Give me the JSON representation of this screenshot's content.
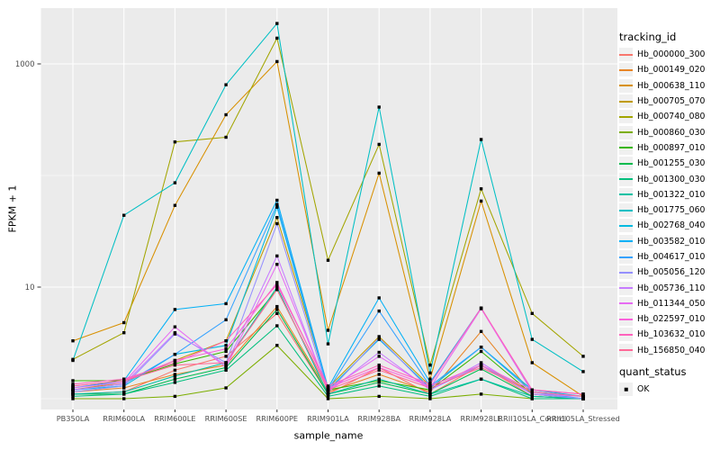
{
  "figure": {
    "background": "#FFFFFF",
    "panel_background": "#EBEBEB",
    "grid_color": "#FFFFFF",
    "tick_color": "#333333",
    "tick_label_color": "#4D4D4D",
    "point_color": "#000000"
  },
  "legend": {
    "tracking_title": "tracking_id",
    "quant_title": "quant_status",
    "quant_items": [
      {
        "label": "OK",
        "marker": "black-square"
      }
    ]
  },
  "chart_data": {
    "type": "line",
    "title": "",
    "xlabel": "sample_name",
    "ylabel": "FPKM + 1",
    "y_scale": "log10",
    "y_tick_labels": [
      "10",
      "1000"
    ],
    "y_tick_values": [
      10,
      1000
    ],
    "y_minor_gridlines": [
      1,
      100
    ],
    "ylim": [
      0.85,
      3200
    ],
    "grid": true,
    "legend_position": "right",
    "point_marker": {
      "shape": "square",
      "color": "#000000",
      "label": "OK"
    },
    "categories": [
      "PB350LA",
      "RRIM600LA",
      "RRIM600LE",
      "RRIM600SE",
      "RRIM600PE",
      "RRIM901LA",
      "RRIM928BA",
      "RRIM928LA",
      "RRIM928LE",
      "RRII105LA_Control",
      "RRII105LA_Stressed"
    ],
    "series": [
      {
        "name": "Hb_000000_300",
        "color": "#F8766D",
        "values": [
          1.1,
          1.15,
          1.8,
          2.4,
          5.8,
          1.1,
          1.9,
          1.1,
          2.0,
          1.05,
          1.0
        ]
      },
      {
        "name": "Hb_000149_020",
        "color": "#E88526",
        "values": [
          1.15,
          1.25,
          1.65,
          2.0,
          6.7,
          1.15,
          1.65,
          1.15,
          4.0,
          1.1,
          1.0
        ]
      },
      {
        "name": "Hb_000638_110",
        "color": "#D89000",
        "values": [
          3.3,
          4.8,
          54.0,
          350.0,
          1050.0,
          4.1,
          105.0,
          1.5,
          59.0,
          2.1,
          1.05
        ]
      },
      {
        "name": "Hb_000705_070",
        "color": "#C09B00",
        "values": [
          1.2,
          1.4,
          2.2,
          3.3,
          42.0,
          1.25,
          3.6,
          1.3,
          2.0,
          1.15,
          1.05
        ]
      },
      {
        "name": "Hb_000740_080",
        "color": "#A3A500",
        "values": [
          2.25,
          3.9,
          200.0,
          220.0,
          1700.0,
          17.4,
          190.0,
          2.0,
          76.0,
          5.8,
          2.4
        ]
      },
      {
        "name": "Hb_000860_030",
        "color": "#7CAE00",
        "values": [
          1.0,
          1.0,
          1.05,
          1.25,
          3.0,
          1.0,
          1.05,
          1.0,
          1.1,
          1.0,
          1.0
        ]
      },
      {
        "name": "Hb_000897_010",
        "color": "#39B600",
        "values": [
          1.45,
          1.45,
          2.05,
          2.65,
          9.5,
          1.2,
          1.45,
          1.2,
          2.65,
          1.1,
          1.0
        ]
      },
      {
        "name": "Hb_001255_030",
        "color": "#00BB4E",
        "values": [
          1.1,
          1.1,
          1.5,
          1.9,
          6.3,
          1.1,
          1.4,
          1.1,
          1.85,
          1.05,
          1.0
        ]
      },
      {
        "name": "Hb_001300_030",
        "color": "#00BF7D",
        "values": [
          1.05,
          1.1,
          1.4,
          1.8,
          4.5,
          1.05,
          1.3,
          1.05,
          1.5,
          1.0,
          1.0
        ]
      },
      {
        "name": "Hb_001322_010",
        "color": "#00C1A3",
        "values": [
          1.1,
          1.15,
          1.6,
          2.1,
          10.0,
          1.1,
          1.5,
          1.1,
          1.5,
          1.05,
          1.0
        ]
      },
      {
        "name": "Hb_001775_060",
        "color": "#00BFC4",
        "values": [
          2.2,
          44.0,
          86.0,
          650.0,
          2300.0,
          3.1,
          410.0,
          1.7,
          210.0,
          3.4,
          1.75
        ]
      },
      {
        "name": "Hb_002768_040",
        "color": "#00BAE0",
        "values": [
          1.2,
          1.3,
          2.5,
          3.0,
          52.0,
          1.2,
          3.4,
          1.25,
          2.9,
          1.2,
          1.05
        ]
      },
      {
        "name": "Hb_003582_010",
        "color": "#00B0F6",
        "values": [
          1.25,
          1.45,
          6.3,
          7.1,
          60.0,
          1.25,
          8.0,
          1.4,
          6.5,
          1.15,
          1.05
        ]
      },
      {
        "name": "Hb_004617_010",
        "color": "#35A2FF",
        "values": [
          1.2,
          1.35,
          2.5,
          5.1,
          55.0,
          1.2,
          6.1,
          1.3,
          2.9,
          1.15,
          1.0
        ]
      },
      {
        "name": "Hb_005056_120",
        "color": "#9590FF",
        "values": [
          1.15,
          1.3,
          3.8,
          2.1,
          37.0,
          1.15,
          3.5,
          1.2,
          2.0,
          1.1,
          1.0
        ]
      },
      {
        "name": "Hb_005736_110",
        "color": "#C77CFF",
        "values": [
          1.2,
          1.35,
          3.9,
          2.0,
          19.0,
          1.15,
          2.6,
          1.2,
          2.1,
          1.1,
          1.05
        ]
      },
      {
        "name": "Hb_011344_050",
        "color": "#E76BF3",
        "values": [
          1.25,
          1.4,
          4.4,
          1.9,
          16.0,
          1.2,
          2.4,
          1.25,
          6.4,
          1.15,
          1.05
        ]
      },
      {
        "name": "Hb_022597_010",
        "color": "#FA62DB",
        "values": [
          1.3,
          1.45,
          2.2,
          2.8,
          11.0,
          1.25,
          1.9,
          1.3,
          2.0,
          1.2,
          1.1
        ]
      },
      {
        "name": "Hb_103632_010",
        "color": "#FF62BC",
        "values": [
          1.35,
          1.5,
          2.1,
          3.3,
          10.5,
          1.3,
          2.0,
          1.35,
          6.5,
          1.2,
          1.1
        ]
      },
      {
        "name": "Hb_156850_040",
        "color": "#FF6A98",
        "values": [
          1.3,
          1.45,
          2.0,
          2.1,
          9.5,
          1.2,
          1.8,
          1.25,
          1.9,
          1.15,
          1.05
        ]
      }
    ]
  }
}
